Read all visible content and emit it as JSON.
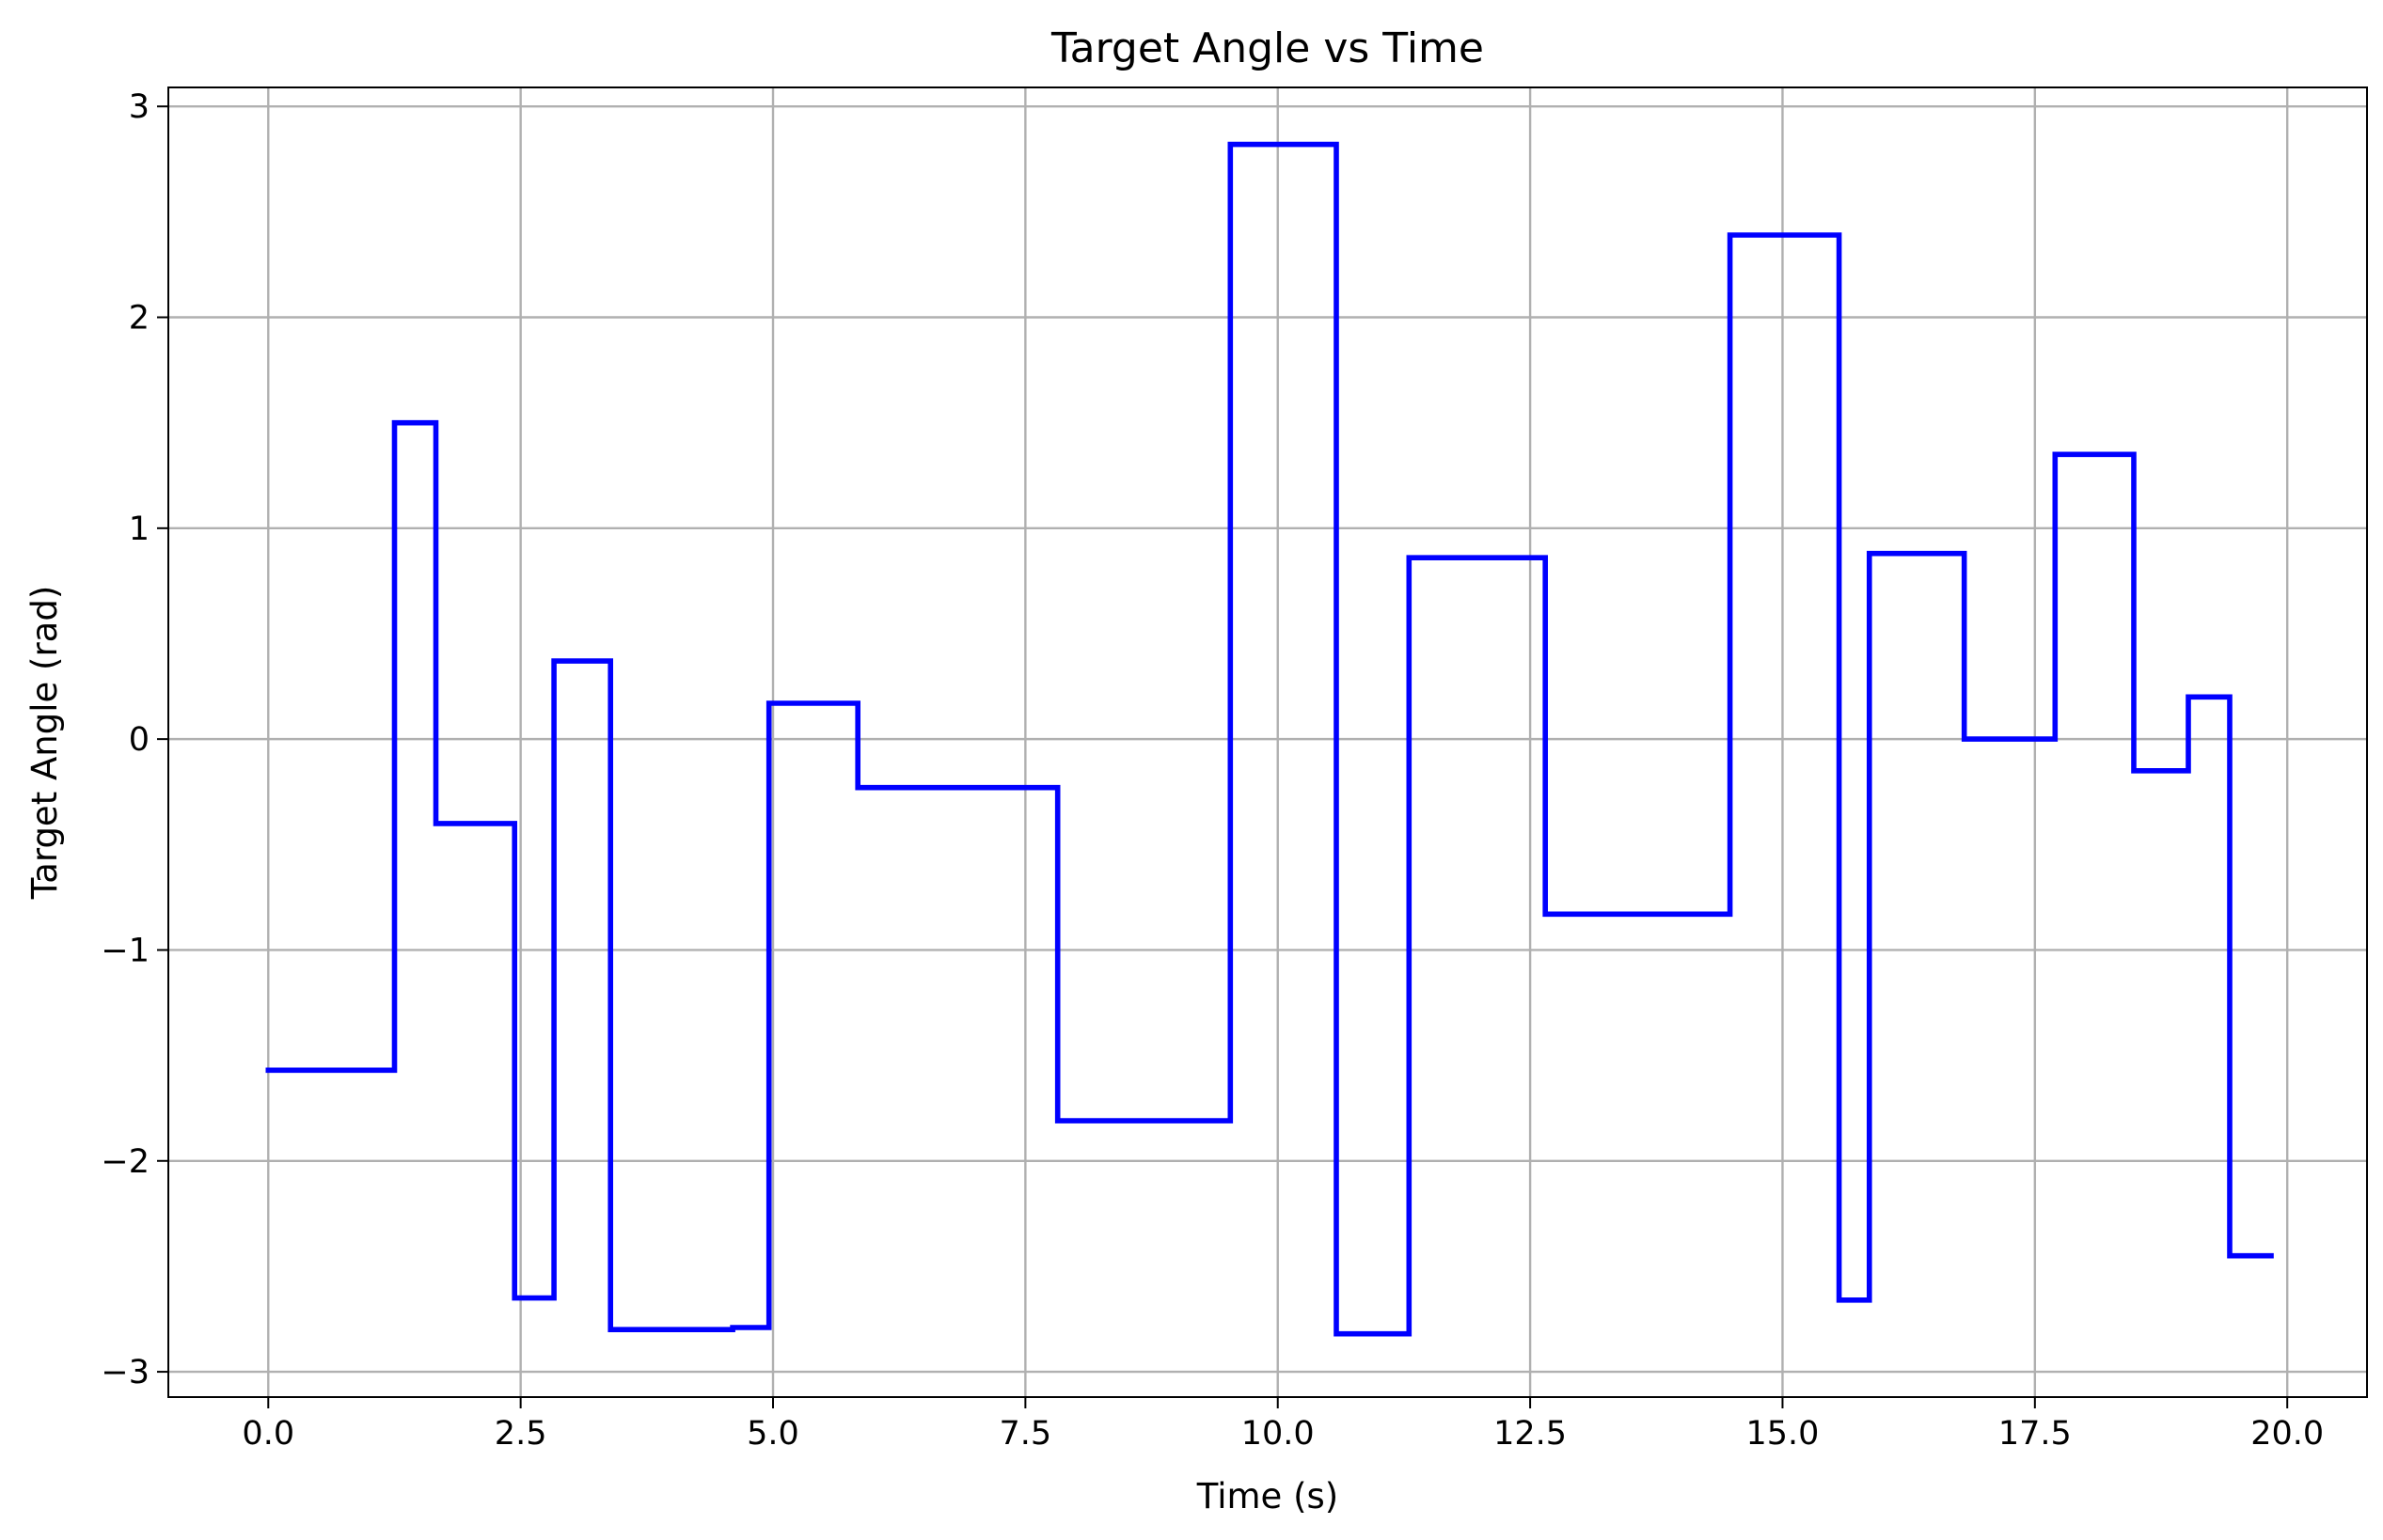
{
  "chart_data": {
    "type": "line",
    "title": "Target Angle vs Time",
    "xlabel": "Time (s)",
    "ylabel": "Target Angle (rad)",
    "xlim": [
      -0.99,
      20.79
    ],
    "ylim": [
      -3.12,
      3.09
    ],
    "xticks": [
      0.0,
      2.5,
      5.0,
      7.5,
      10.0,
      12.5,
      15.0,
      17.5,
      20.0
    ],
    "xtick_labels": [
      "0.0",
      "2.5",
      "5.0",
      "7.5",
      "10.0",
      "12.5",
      "15.0",
      "17.5",
      "20.0"
    ],
    "yticks": [
      -3,
      -2,
      -1,
      0,
      1,
      2,
      3
    ],
    "ytick_labels": [
      "−3",
      "−2",
      "−1",
      "0",
      "1",
      "2",
      "3"
    ],
    "grid": true,
    "series": [
      {
        "color": "#0000ff",
        "step": "post",
        "x": [
          0.0,
          1.25,
          1.66,
          2.44,
          2.83,
          3.39,
          4.6,
          4.96,
          5.84,
          7.82,
          9.53,
          10.58,
          11.3,
          12.65,
          14.48,
          15.56,
          15.86,
          16.8,
          17.7,
          18.48,
          19.02,
          19.43,
          19.84
        ],
        "y": [
          -1.57,
          1.5,
          -0.4,
          -2.65,
          0.37,
          -2.8,
          -2.79,
          0.17,
          -0.23,
          -1.81,
          2.82,
          -2.82,
          0.86,
          -0.83,
          2.39,
          -2.66,
          0.88,
          0.0,
          1.35,
          -0.15,
          0.2,
          -2.45,
          -2.45
        ]
      }
    ]
  }
}
